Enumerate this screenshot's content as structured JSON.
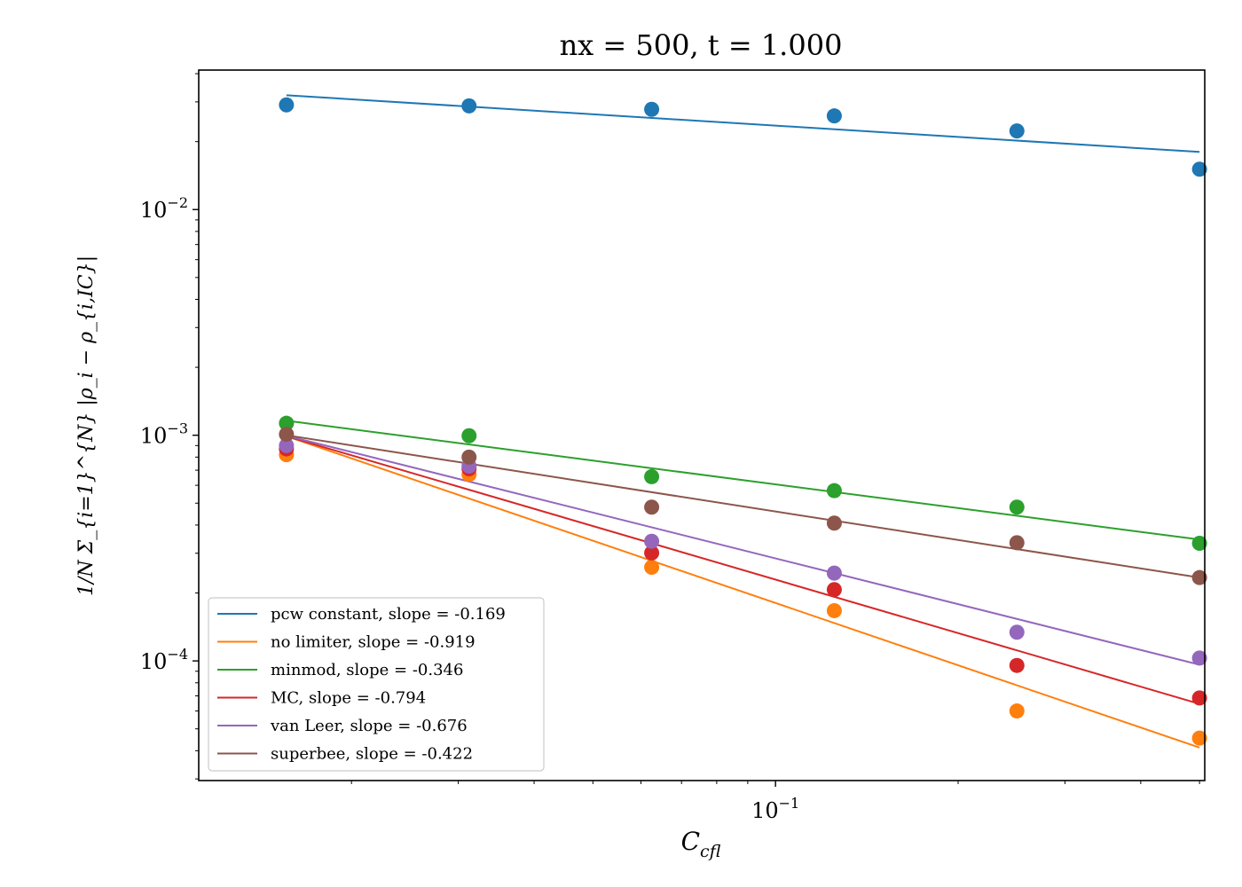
{
  "chart_data": {
    "type": "scatter",
    "title": "nx = 500, t = 1.000",
    "xlabel_base": "C",
    "xlabel_sub": "cfl",
    "ylabel": "1/N Σ_{i=1}^{N} |ρ_i − ρ_{i,IC}|",
    "x_scale": "log",
    "y_scale": "log",
    "xlim": [
      0.0112,
      0.51
    ],
    "ylim": [
      2.95e-05,
      0.0415
    ],
    "x_ticks": [
      {
        "base": "10",
        "exp": "−1",
        "value": 0.1
      }
    ],
    "y_ticks": [
      {
        "base": "10",
        "exp": "−2",
        "value": 0.01
      },
      {
        "base": "10",
        "exp": "−3",
        "value": 0.001
      },
      {
        "base": "10",
        "exp": "−4",
        "value": 0.0001
      }
    ],
    "grid": false,
    "legend_position": "lower-left",
    "x": [
      0.015625,
      0.03125,
      0.0625,
      0.125,
      0.25,
      0.5
    ],
    "series": [
      {
        "name": "pcw constant, slope = -0.169",
        "color": "#1f77b4",
        "points": [
          0.0291,
          0.0288,
          0.0278,
          0.026,
          0.0223,
          0.0151
        ],
        "fit": [
          0.0321,
          0.018
        ]
      },
      {
        "name": "no limiter, slope = -0.919",
        "color": "#ff7f0e",
        "points": [
          0.00082,
          0.00067,
          0.00026,
          0.000167,
          6e-05,
          4.55e-05
        ],
        "fit": [
          0.00099,
          4.13e-05
        ]
      },
      {
        "name": "minmod, slope = -0.346",
        "color": "#2ca02c",
        "points": [
          0.00113,
          0.000995,
          0.000655,
          0.000568,
          0.00048,
          0.000332
        ],
        "fit": [
          0.00116,
          0.000345
        ]
      },
      {
        "name": "MC, slope = -0.794",
        "color": "#d62728",
        "points": [
          0.00087,
          0.00071,
          0.000301,
          0.000207,
          9.55e-05,
          6.85e-05
        ],
        "fit": [
          0.00099,
          6.45e-05
        ]
      },
      {
        "name": "van Leer, slope = -0.676",
        "color": "#9467bd",
        "points": [
          0.0009,
          0.00073,
          0.000339,
          0.000245,
          0.000134,
          0.000103
        ],
        "fit": [
          0.000995,
          9.62e-05
        ]
      },
      {
        "name": "superbee, slope = -0.422",
        "color": "#8c564b",
        "points": [
          0.00101,
          0.0008,
          0.00048,
          0.000408,
          0.000334,
          0.000234
        ],
        "fit": [
          0.001,
          0.000234
        ]
      }
    ]
  }
}
